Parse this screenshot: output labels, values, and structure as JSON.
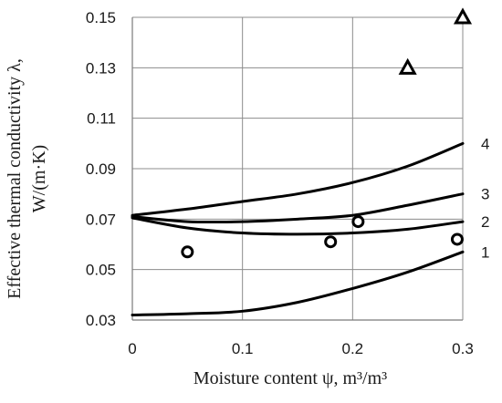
{
  "chart_data": {
    "type": "line",
    "title": "",
    "xlabel": "Moisture content ψ, m³/m³",
    "ylabel_line1": "Effective thermal conductivity λ,",
    "ylabel_line2": "W/(m·K)",
    "xlim": [
      0,
      0.3
    ],
    "ylim": [
      0.03,
      0.15
    ],
    "x_ticks": [
      0,
      0.1,
      0.2,
      0.3
    ],
    "x_tick_labels": [
      "0",
      "0.1",
      "0.2",
      "0.3"
    ],
    "y_ticks": [
      0.03,
      0.05,
      0.07,
      0.09,
      0.11,
      0.13,
      0.15
    ],
    "y_tick_labels": [
      "0.03",
      "0.05",
      "0.07",
      "0.09",
      "0.11",
      "0.13",
      "0.15"
    ],
    "grid": true,
    "series": [
      {
        "label": "1",
        "color": "#000000",
        "x": [
          0,
          0.05,
          0.1,
          0.15,
          0.2,
          0.25,
          0.3
        ],
        "y": [
          0.032,
          0.0325,
          0.0335,
          0.037,
          0.0425,
          0.049,
          0.057
        ]
      },
      {
        "label": "2",
        "color": "#000000",
        "x": [
          0,
          0.05,
          0.1,
          0.15,
          0.2,
          0.25,
          0.3
        ],
        "y": [
          0.0705,
          0.0665,
          0.0645,
          0.064,
          0.0645,
          0.066,
          0.069
        ]
      },
      {
        "label": "3",
        "color": "#000000",
        "x": [
          0,
          0.05,
          0.1,
          0.15,
          0.2,
          0.25,
          0.3
        ],
        "y": [
          0.071,
          0.069,
          0.069,
          0.07,
          0.0715,
          0.0755,
          0.08
        ]
      },
      {
        "label": "4",
        "color": "#000000",
        "x": [
          0,
          0.05,
          0.1,
          0.15,
          0.2,
          0.25,
          0.3
        ],
        "y": [
          0.0715,
          0.074,
          0.077,
          0.08,
          0.0845,
          0.091,
          0.1
        ]
      }
    ],
    "circle_points": [
      {
        "x": 0.05,
        "y": 0.057
      },
      {
        "x": 0.18,
        "y": 0.061
      },
      {
        "x": 0.205,
        "y": 0.069
      },
      {
        "x": 0.295,
        "y": 0.062
      }
    ],
    "triangle_points": [
      {
        "x": 0.25,
        "y": 0.13
      },
      {
        "x": 0.3,
        "y": 0.15
      }
    ]
  }
}
